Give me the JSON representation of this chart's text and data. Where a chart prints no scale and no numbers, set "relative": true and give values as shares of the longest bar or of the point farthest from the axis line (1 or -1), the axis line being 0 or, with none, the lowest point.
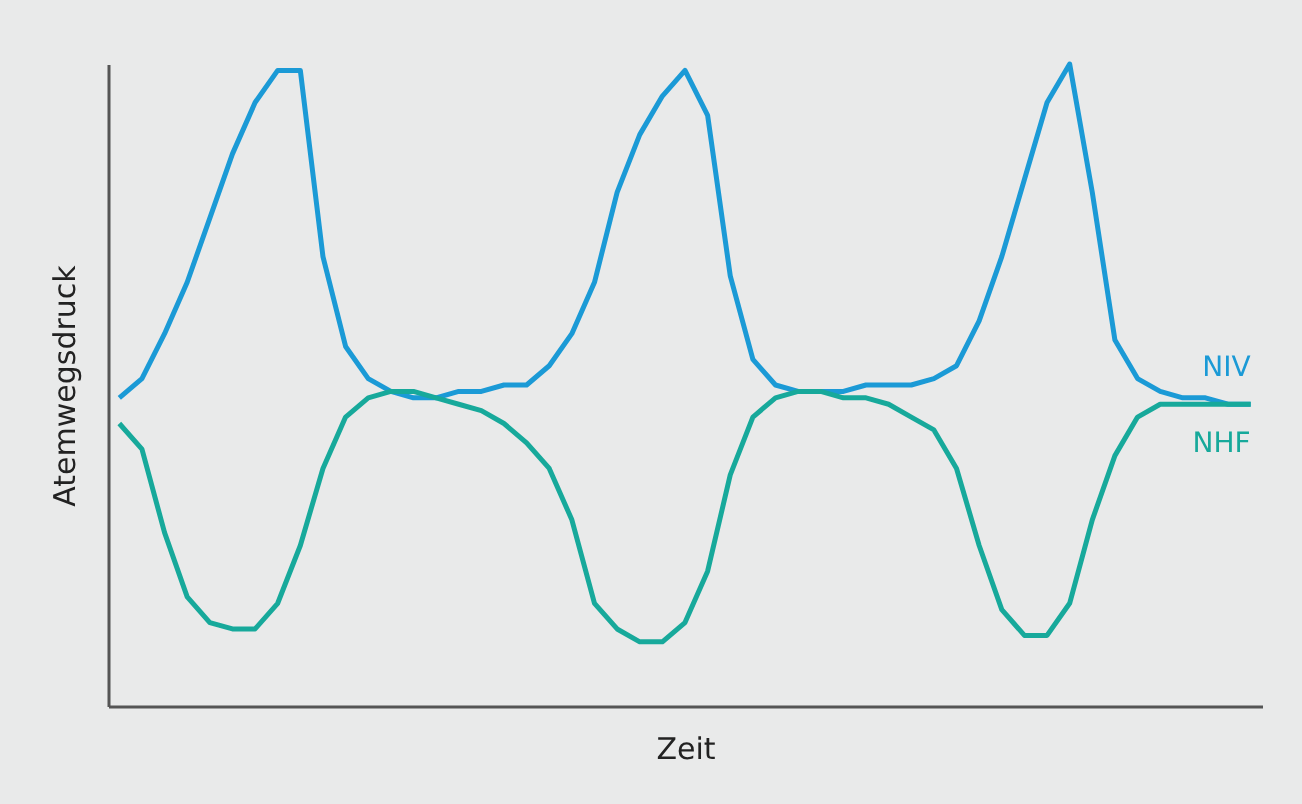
{
  "chart_data": {
    "type": "line",
    "relative": true,
    "xlabel": "Zeit",
    "ylabel": "Atemwegsdruck",
    "tick_labels": false,
    "grid": false,
    "legend": false,
    "marker": "none",
    "line_style": "solid",
    "categories": [
      null,
      null,
      null,
      null,
      null,
      null,
      null,
      null,
      null,
      null,
      null,
      null,
      null,
      null,
      null,
      null,
      null,
      null,
      null,
      null,
      null,
      null,
      null,
      null,
      null,
      null,
      null,
      null,
      null,
      null,
      null,
      null,
      null,
      null,
      null,
      null,
      null,
      null,
      null,
      null,
      null,
      null,
      null,
      null,
      null,
      null,
      null,
      null,
      null,
      null,
      null
    ],
    "series": [
      {
        "name": "NIV",
        "color": "#1b9ad6",
        "values": [
          0.48,
          0.51,
          0.58,
          0.66,
          0.76,
          0.86,
          0.94,
          0.99,
          0.99,
          0.7,
          0.56,
          0.51,
          0.49,
          0.48,
          0.48,
          0.49,
          0.49,
          0.5,
          0.5,
          0.53,
          0.58,
          0.66,
          0.8,
          0.89,
          0.95,
          0.99,
          0.92,
          0.67,
          0.54,
          0.5,
          0.49,
          0.49,
          0.49,
          0.5,
          0.5,
          0.5,
          0.51,
          0.53,
          0.6,
          0.7,
          0.82,
          0.94,
          1.0,
          0.8,
          0.57,
          0.51,
          0.49,
          0.48,
          0.48,
          0.47,
          0.47
        ]
      },
      {
        "name": "NHF",
        "color": "#17a99b",
        "values": [
          0.44,
          0.4,
          0.27,
          0.17,
          0.13,
          0.12,
          0.12,
          0.16,
          0.25,
          0.37,
          0.45,
          0.48,
          0.49,
          0.49,
          0.48,
          0.47,
          0.46,
          0.44,
          0.41,
          0.37,
          0.29,
          0.16,
          0.12,
          0.1,
          0.1,
          0.13,
          0.21,
          0.36,
          0.45,
          0.48,
          0.49,
          0.49,
          0.48,
          0.48,
          0.47,
          0.45,
          0.43,
          0.37,
          0.25,
          0.15,
          0.11,
          0.11,
          0.16,
          0.29,
          0.39,
          0.45,
          0.47,
          0.47,
          0.47,
          0.47,
          0.47
        ]
      }
    ]
  }
}
